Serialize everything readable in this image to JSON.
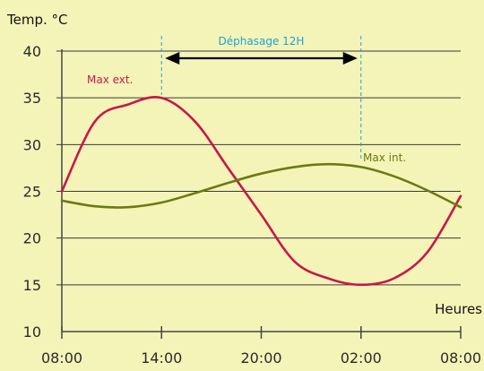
{
  "chart_data": {
    "type": "line",
    "ylabel": "Temp. °C",
    "xlabel": "Heures",
    "ylim": [
      10,
      40
    ],
    "yticks": [
      10,
      15,
      20,
      25,
      30,
      35,
      40
    ],
    "xticks": [
      "08:00",
      "14:00",
      "20:00",
      "02:00",
      "08:00"
    ],
    "xlim": [
      0,
      24
    ],
    "grid": "horizontal",
    "series": [
      {
        "name": "Max ext.",
        "color": "#c8174a",
        "points": [
          [
            0,
            25
          ],
          [
            2,
            32.5
          ],
          [
            4,
            34.3
          ],
          [
            6,
            35
          ],
          [
            8,
            32.5
          ],
          [
            10,
            27.5
          ],
          [
            12,
            22.5
          ],
          [
            14,
            17.5
          ],
          [
            16,
            15.7
          ],
          [
            18,
            15
          ],
          [
            20,
            15.7
          ],
          [
            22,
            18.5
          ],
          [
            24,
            24.5
          ]
        ]
      },
      {
        "name": "Max int.",
        "color": "#6b7a12",
        "points": [
          [
            0,
            24
          ],
          [
            2,
            23.4
          ],
          [
            4,
            23.3
          ],
          [
            6,
            23.8
          ],
          [
            8,
            24.8
          ],
          [
            10,
            25.9
          ],
          [
            12,
            26.9
          ],
          [
            14,
            27.6
          ],
          [
            16,
            27.9
          ],
          [
            18,
            27.6
          ],
          [
            20,
            26.6
          ],
          [
            22,
            25.1
          ],
          [
            24,
            23.3
          ]
        ]
      }
    ],
    "annotations": [
      {
        "text": "Déphasage 12H",
        "from_x": 6,
        "to_x": 18,
        "color": "#1aa3d6"
      }
    ]
  }
}
